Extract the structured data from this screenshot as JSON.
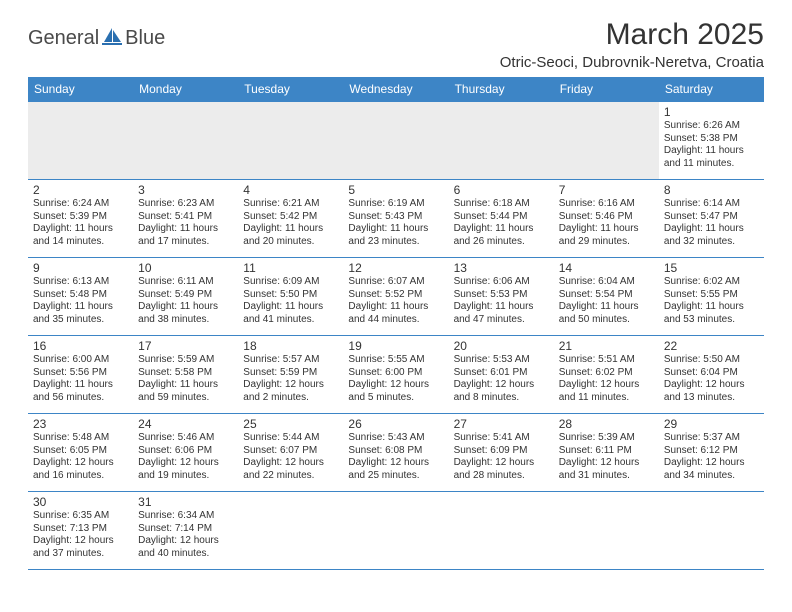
{
  "header": {
    "logo_text_1": "General",
    "logo_text_2": "Blue",
    "month_title": "March 2025",
    "location": "Otric-Seoci, Dubrovnik-Neretva, Croatia"
  },
  "colors": {
    "header_bg": "#3d85c6",
    "header_text": "#ffffff",
    "border": "#3d85c6",
    "empty_row_bg": "#ececec",
    "logo_accent": "#2a6fb0"
  },
  "weekdays": [
    "Sunday",
    "Monday",
    "Tuesday",
    "Wednesday",
    "Thursday",
    "Friday",
    "Saturday"
  ],
  "weeks": [
    [
      null,
      null,
      null,
      null,
      null,
      null,
      {
        "d": "1",
        "sr": "6:26 AM",
        "ss": "5:38 PM",
        "dl": "11 hours and 11 minutes."
      }
    ],
    [
      {
        "d": "2",
        "sr": "6:24 AM",
        "ss": "5:39 PM",
        "dl": "11 hours and 14 minutes."
      },
      {
        "d": "3",
        "sr": "6:23 AM",
        "ss": "5:41 PM",
        "dl": "11 hours and 17 minutes."
      },
      {
        "d": "4",
        "sr": "6:21 AM",
        "ss": "5:42 PM",
        "dl": "11 hours and 20 minutes."
      },
      {
        "d": "5",
        "sr": "6:19 AM",
        "ss": "5:43 PM",
        "dl": "11 hours and 23 minutes."
      },
      {
        "d": "6",
        "sr": "6:18 AM",
        "ss": "5:44 PM",
        "dl": "11 hours and 26 minutes."
      },
      {
        "d": "7",
        "sr": "6:16 AM",
        "ss": "5:46 PM",
        "dl": "11 hours and 29 minutes."
      },
      {
        "d": "8",
        "sr": "6:14 AM",
        "ss": "5:47 PM",
        "dl": "11 hours and 32 minutes."
      }
    ],
    [
      {
        "d": "9",
        "sr": "6:13 AM",
        "ss": "5:48 PM",
        "dl": "11 hours and 35 minutes."
      },
      {
        "d": "10",
        "sr": "6:11 AM",
        "ss": "5:49 PM",
        "dl": "11 hours and 38 minutes."
      },
      {
        "d": "11",
        "sr": "6:09 AM",
        "ss": "5:50 PM",
        "dl": "11 hours and 41 minutes."
      },
      {
        "d": "12",
        "sr": "6:07 AM",
        "ss": "5:52 PM",
        "dl": "11 hours and 44 minutes."
      },
      {
        "d": "13",
        "sr": "6:06 AM",
        "ss": "5:53 PM",
        "dl": "11 hours and 47 minutes."
      },
      {
        "d": "14",
        "sr": "6:04 AM",
        "ss": "5:54 PM",
        "dl": "11 hours and 50 minutes."
      },
      {
        "d": "15",
        "sr": "6:02 AM",
        "ss": "5:55 PM",
        "dl": "11 hours and 53 minutes."
      }
    ],
    [
      {
        "d": "16",
        "sr": "6:00 AM",
        "ss": "5:56 PM",
        "dl": "11 hours and 56 minutes."
      },
      {
        "d": "17",
        "sr": "5:59 AM",
        "ss": "5:58 PM",
        "dl": "11 hours and 59 minutes."
      },
      {
        "d": "18",
        "sr": "5:57 AM",
        "ss": "5:59 PM",
        "dl": "12 hours and 2 minutes."
      },
      {
        "d": "19",
        "sr": "5:55 AM",
        "ss": "6:00 PM",
        "dl": "12 hours and 5 minutes."
      },
      {
        "d": "20",
        "sr": "5:53 AM",
        "ss": "6:01 PM",
        "dl": "12 hours and 8 minutes."
      },
      {
        "d": "21",
        "sr": "5:51 AM",
        "ss": "6:02 PM",
        "dl": "12 hours and 11 minutes."
      },
      {
        "d": "22",
        "sr": "5:50 AM",
        "ss": "6:04 PM",
        "dl": "12 hours and 13 minutes."
      }
    ],
    [
      {
        "d": "23",
        "sr": "5:48 AM",
        "ss": "6:05 PM",
        "dl": "12 hours and 16 minutes."
      },
      {
        "d": "24",
        "sr": "5:46 AM",
        "ss": "6:06 PM",
        "dl": "12 hours and 19 minutes."
      },
      {
        "d": "25",
        "sr": "5:44 AM",
        "ss": "6:07 PM",
        "dl": "12 hours and 22 minutes."
      },
      {
        "d": "26",
        "sr": "5:43 AM",
        "ss": "6:08 PM",
        "dl": "12 hours and 25 minutes."
      },
      {
        "d": "27",
        "sr": "5:41 AM",
        "ss": "6:09 PM",
        "dl": "12 hours and 28 minutes."
      },
      {
        "d": "28",
        "sr": "5:39 AM",
        "ss": "6:11 PM",
        "dl": "12 hours and 31 minutes."
      },
      {
        "d": "29",
        "sr": "5:37 AM",
        "ss": "6:12 PM",
        "dl": "12 hours and 34 minutes."
      }
    ],
    [
      {
        "d": "30",
        "sr": "6:35 AM",
        "ss": "7:13 PM",
        "dl": "12 hours and 37 minutes."
      },
      {
        "d": "31",
        "sr": "6:34 AM",
        "ss": "7:14 PM",
        "dl": "12 hours and 40 minutes."
      },
      null,
      null,
      null,
      null,
      null
    ]
  ],
  "labels": {
    "sunrise": "Sunrise:",
    "sunset": "Sunset:",
    "daylight": "Daylight:"
  }
}
